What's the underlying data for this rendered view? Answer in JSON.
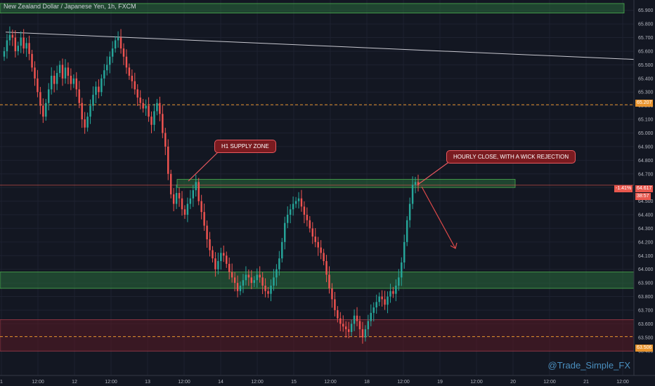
{
  "header": {
    "symbol_title": "New Zealand Dollar / Japanese Yen, 1h, FXCM"
  },
  "watermark": "@Trade_Simple_FX",
  "colors": {
    "background": "#131722",
    "grid": "#1e2230",
    "up": "#26a69a",
    "down": "#ef5350",
    "supply_zone": "#2a6b3c",
    "demand_zone": "#2a6b3c",
    "lower_zone": "#5a1a24",
    "trendline": "#c9c9d1",
    "arrow": "#e04a4a",
    "watermark": "#4a8fbf",
    "price_line": "#e8584e"
  },
  "annotations": {
    "h1_supply": "H1 SUPPLY ZONE",
    "hourly_close": "HOURLY CLOSE, WITH A WICK REJECTION"
  },
  "price_tags": {
    "upper_level": "65.207",
    "lower_level": "63.506",
    "current_price": "64.617",
    "change_pct": "-1.41%",
    "countdown": "38:57"
  },
  "chart_data": {
    "type": "candlestick",
    "title": "New Zealand Dollar / Japanese Yen, 1h, FXCM",
    "ylim": [
      63.35,
      65.95
    ],
    "y_ticks": [
      "65.900",
      "65.800",
      "65.700",
      "65.600",
      "65.500",
      "65.400",
      "65.300",
      "65.200",
      "65.100",
      "65.000",
      "64.900",
      "64.800",
      "64.700",
      "64.600",
      "64.500",
      "64.400",
      "64.300",
      "64.200",
      "64.100",
      "64.000",
      "63.900",
      "63.800",
      "63.700",
      "63.600",
      "63.500",
      "63.400"
    ],
    "x_ticks": [
      "1",
      "12:00",
      "12",
      "12:00",
      "13",
      "12:00",
      "14",
      "12:00",
      "15",
      "12:00",
      "18",
      "12:00",
      "19",
      "12:00",
      "20",
      "12:00",
      "21",
      "12:00"
    ],
    "levels": {
      "upper_dashed": 65.207,
      "lower_dashed": 63.506,
      "current": 64.617
    },
    "zones": [
      {
        "name": "top",
        "from": 65.88,
        "to": 65.95
      },
      {
        "name": "h1-supply",
        "from": 64.6,
        "to": 64.66
      },
      {
        "name": "demand",
        "from": 63.86,
        "to": 63.98
      },
      {
        "name": "lower",
        "from": 63.4,
        "to": 63.63
      }
    ],
    "trendline": {
      "from": 65.74,
      "to": 65.54
    },
    "closes": [
      65.6,
      65.68,
      65.72,
      65.7,
      65.6,
      65.64,
      65.7,
      65.62,
      65.66,
      65.58,
      65.48,
      65.4,
      65.3,
      65.2,
      65.12,
      65.22,
      65.32,
      65.42,
      65.36,
      65.44,
      65.5,
      65.4,
      65.48,
      65.42,
      65.36,
      65.4,
      65.32,
      65.22,
      65.1,
      65.04,
      65.12,
      65.2,
      65.28,
      65.34,
      65.3,
      65.4,
      65.46,
      65.5,
      65.56,
      65.62,
      65.68,
      65.7,
      65.62,
      65.56,
      65.48,
      65.42,
      65.38,
      65.32,
      65.26,
      65.22,
      65.18,
      65.2,
      65.12,
      65.06,
      65.16,
      65.22,
      65.14,
      65.0,
      64.9,
      64.7,
      64.55,
      64.48,
      64.56,
      64.52,
      64.44,
      64.4,
      64.48,
      64.52,
      64.58,
      64.64,
      64.5,
      64.42,
      64.32,
      64.22,
      64.14,
      64.08,
      64.0,
      64.06,
      64.12,
      64.1,
      64.04,
      63.98,
      63.94,
      63.9,
      63.84,
      63.88,
      63.92,
      63.96,
      63.94,
      63.9,
      63.92,
      63.96,
      63.94,
      63.88,
      63.84,
      63.82,
      63.88,
      63.94,
      64.0,
      64.08,
      64.2,
      64.34,
      64.4,
      64.44,
      64.48,
      64.5,
      64.52,
      64.46,
      64.4,
      64.36,
      64.3,
      64.24,
      64.2,
      64.16,
      64.12,
      64.06,
      63.96,
      63.86,
      63.78,
      63.7,
      63.64,
      63.6,
      63.58,
      63.56,
      63.54,
      63.6,
      63.66,
      63.62,
      63.56,
      63.5,
      63.56,
      63.62,
      63.68,
      63.72,
      63.76,
      63.8,
      63.78,
      63.74,
      63.8,
      63.84,
      63.82,
      63.88,
      63.94,
      64.05,
      64.2,
      64.36,
      64.48,
      64.62,
      64.64,
      64.617
    ]
  }
}
